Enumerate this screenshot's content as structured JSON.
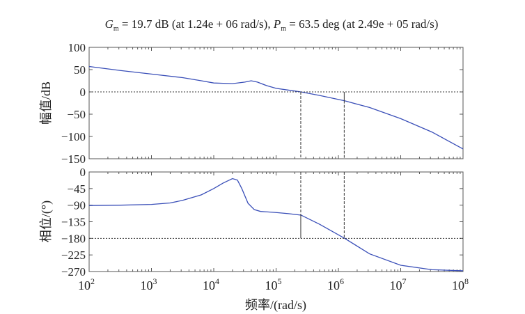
{
  "chart_data": {
    "type": "line",
    "title": "Gm = 19.7 dB (at 1.24e+06 rad/s), Pm = 63.5 deg (at 2.49e+05 rad/s)",
    "title_parts": {
      "gm_sym": "G",
      "pm_sym": "P",
      "sub": "m",
      "gm_text": " = 19.7 dB (at 1.24e + 06 rad/s), ",
      "pm_text": " = 63.5 deg (at 2.49e + 05 rad/s)"
    },
    "xlabel": "频率/(rad/s)",
    "xscale": "log",
    "xlim": [
      100,
      100000000
    ],
    "x_ticks": [
      "2",
      "3",
      "4",
      "5",
      "6",
      "7",
      "8"
    ],
    "line_color": "#3a4fb8",
    "gain_margin": {
      "db": 19.7,
      "freq": 1240000
    },
    "phase_margin": {
      "deg": 63.5,
      "freq": 249000
    },
    "magnitude": {
      "ylabel": "幅值/dB",
      "ylim": [
        -150,
        100
      ],
      "y_ticks": [
        "100",
        "50",
        "0",
        "−50",
        "−100",
        "−150"
      ],
      "y_tick_values": [
        100,
        50,
        0,
        -50,
        -100,
        -150
      ],
      "log10_x": [
        2,
        2.5,
        3,
        3.5,
        3.8,
        4,
        4.3,
        4.5,
        4.6,
        4.7,
        4.85,
        5,
        5.2,
        5.4,
        5.7,
        6.1,
        6.5,
        7,
        7.5,
        8
      ],
      "values": [
        57,
        48,
        40,
        32,
        25,
        20,
        18.5,
        22,
        25,
        22,
        14,
        8,
        4,
        0,
        -8,
        -20,
        -35,
        -60,
        -90,
        -128
      ]
    },
    "phase": {
      "ylabel": "相位/(°)",
      "ylim": [
        -270,
        0
      ],
      "y_ticks": [
        "0",
        "−45",
        "−90",
        "−135",
        "−180",
        "−225",
        "−270"
      ],
      "y_tick_values": [
        0,
        -45,
        -90,
        -135,
        -180,
        -225,
        -270
      ],
      "log10_x": [
        2,
        2.5,
        3,
        3.3,
        3.5,
        3.8,
        4,
        4.15,
        4.3,
        4.38,
        4.45,
        4.55,
        4.65,
        4.75,
        5,
        5.2,
        5.4,
        5.7,
        6.1,
        6.5,
        7,
        7.5,
        8
      ],
      "values": [
        -91,
        -90,
        -88,
        -84,
        -77,
        -62,
        -45,
        -30,
        -18,
        -22,
        -45,
        -85,
        -102,
        -107,
        -110,
        -113,
        -117,
        -142,
        -180,
        -222,
        -253,
        -265,
        -268
      ]
    }
  }
}
